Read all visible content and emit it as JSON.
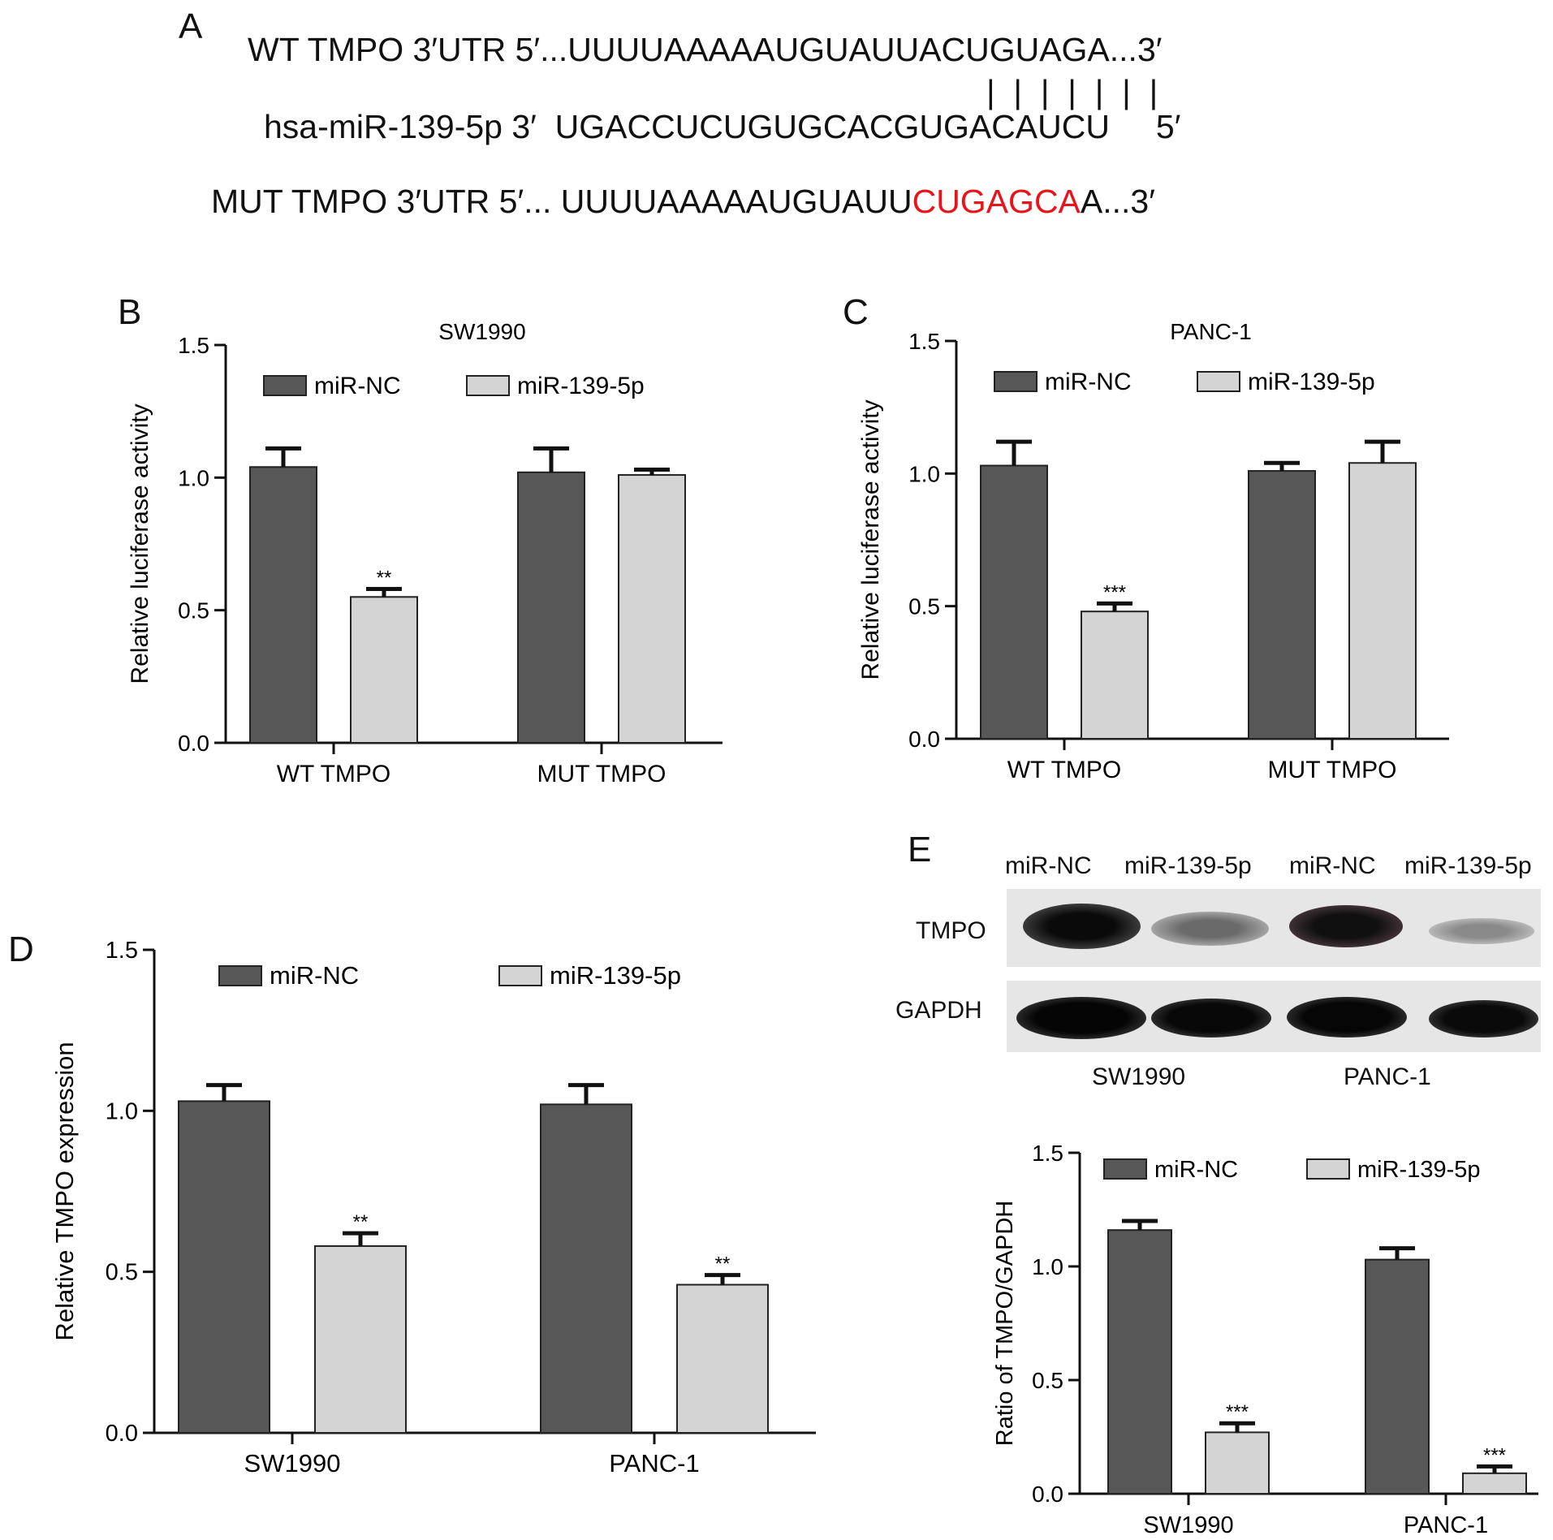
{
  "panelA": {
    "letter": "A",
    "wt_line": "WT TMPO 3′UTR 5′...UUUUAAAAAUGUAUUACUGUAGA...3′",
    "mir_line": "hsa-miR-139-5p 3′  UGACCUCUGUGCACGUGACAUCU     5′",
    "pairing": "|  |  |  |  |  |  |",
    "mut_prefix": "MUT TMPO 3′UTR 5′... UUUUAAAAAUGUAUU",
    "mut_highlight": "CUGAGCA",
    "mut_suffix": "A...3′",
    "highlight_color": "#e8141c"
  },
  "panelE_blot": {
    "letter": "E",
    "lane_labels": [
      "miR-NC",
      "miR-139-5p",
      "miR-NC",
      "miR-139-5p"
    ],
    "row_labels": [
      "TMPO",
      "GAPDH"
    ],
    "group_labels": [
      "SW1990",
      "PANC-1"
    ]
  },
  "colors": {
    "miR_NC": "#575757",
    "miR_139_5p": "#d4d4d4",
    "axis": "#111111"
  },
  "chart_data": [
    {
      "id": "B",
      "letter": "B",
      "type": "bar",
      "title": "SW1990",
      "ylabel": "Relative luciferase activity",
      "xlabel": "",
      "ylim": [
        0,
        1.5
      ],
      "yticks": [
        "0.0",
        "0.5",
        "1.0",
        "1.5"
      ],
      "categories": [
        "WT TMPO",
        "MUT TMPO"
      ],
      "series": [
        {
          "name": "miR-NC",
          "values": [
            1.04,
            1.02
          ],
          "errors": [
            0.07,
            0.09
          ],
          "sig": [
            "",
            ""
          ]
        },
        {
          "name": "miR-139-5p",
          "values": [
            0.55,
            1.01
          ],
          "errors": [
            0.03,
            0.02
          ],
          "sig": [
            "**",
            ""
          ]
        }
      ],
      "legend": "top"
    },
    {
      "id": "C",
      "letter": "C",
      "type": "bar",
      "title": "PANC-1",
      "ylabel": "Relative luciferase activity",
      "xlabel": "",
      "ylim": [
        0,
        1.5
      ],
      "yticks": [
        "0.0",
        "0.5",
        "1.0",
        "1.5"
      ],
      "categories": [
        "WT TMPO",
        "MUT TMPO"
      ],
      "series": [
        {
          "name": "miR-NC",
          "values": [
            1.03,
            1.01
          ],
          "errors": [
            0.09,
            0.03
          ],
          "sig": [
            "",
            ""
          ]
        },
        {
          "name": "miR-139-5p",
          "values": [
            0.48,
            1.04
          ],
          "errors": [
            0.03,
            0.08
          ],
          "sig": [
            "***",
            ""
          ]
        }
      ],
      "legend": "top"
    },
    {
      "id": "D",
      "letter": "D",
      "type": "bar",
      "title": "",
      "ylabel": "Relative TMPO expression",
      "xlabel": "",
      "ylim": [
        0,
        1.5
      ],
      "yticks": [
        "0.0",
        "0.5",
        "1.0",
        "1.5"
      ],
      "categories": [
        "SW1990",
        "PANC-1"
      ],
      "series": [
        {
          "name": "miR-NC",
          "values": [
            1.03,
            1.02
          ],
          "errors": [
            0.05,
            0.06
          ],
          "sig": [
            "",
            ""
          ]
        },
        {
          "name": "miR-139-5p",
          "values": [
            0.58,
            0.46
          ],
          "errors": [
            0.04,
            0.03
          ],
          "sig": [
            "**",
            "**"
          ]
        }
      ],
      "legend": "top"
    },
    {
      "id": "E",
      "letter": "",
      "type": "bar",
      "title": "",
      "ylabel": "Ratio of TMPO/GAPDH",
      "xlabel": "",
      "ylim": [
        0,
        1.5
      ],
      "yticks": [
        "0.0",
        "0.5",
        "1.0",
        "1.5"
      ],
      "categories": [
        "SW1990",
        "PANC-1"
      ],
      "series": [
        {
          "name": "miR-NC",
          "values": [
            1.16,
            1.03
          ],
          "errors": [
            0.04,
            0.05
          ],
          "sig": [
            "",
            ""
          ]
        },
        {
          "name": "miR-139-5p",
          "values": [
            0.27,
            0.09
          ],
          "errors": [
            0.04,
            0.03
          ],
          "sig": [
            "***",
            "***"
          ]
        }
      ],
      "legend": "top"
    }
  ]
}
